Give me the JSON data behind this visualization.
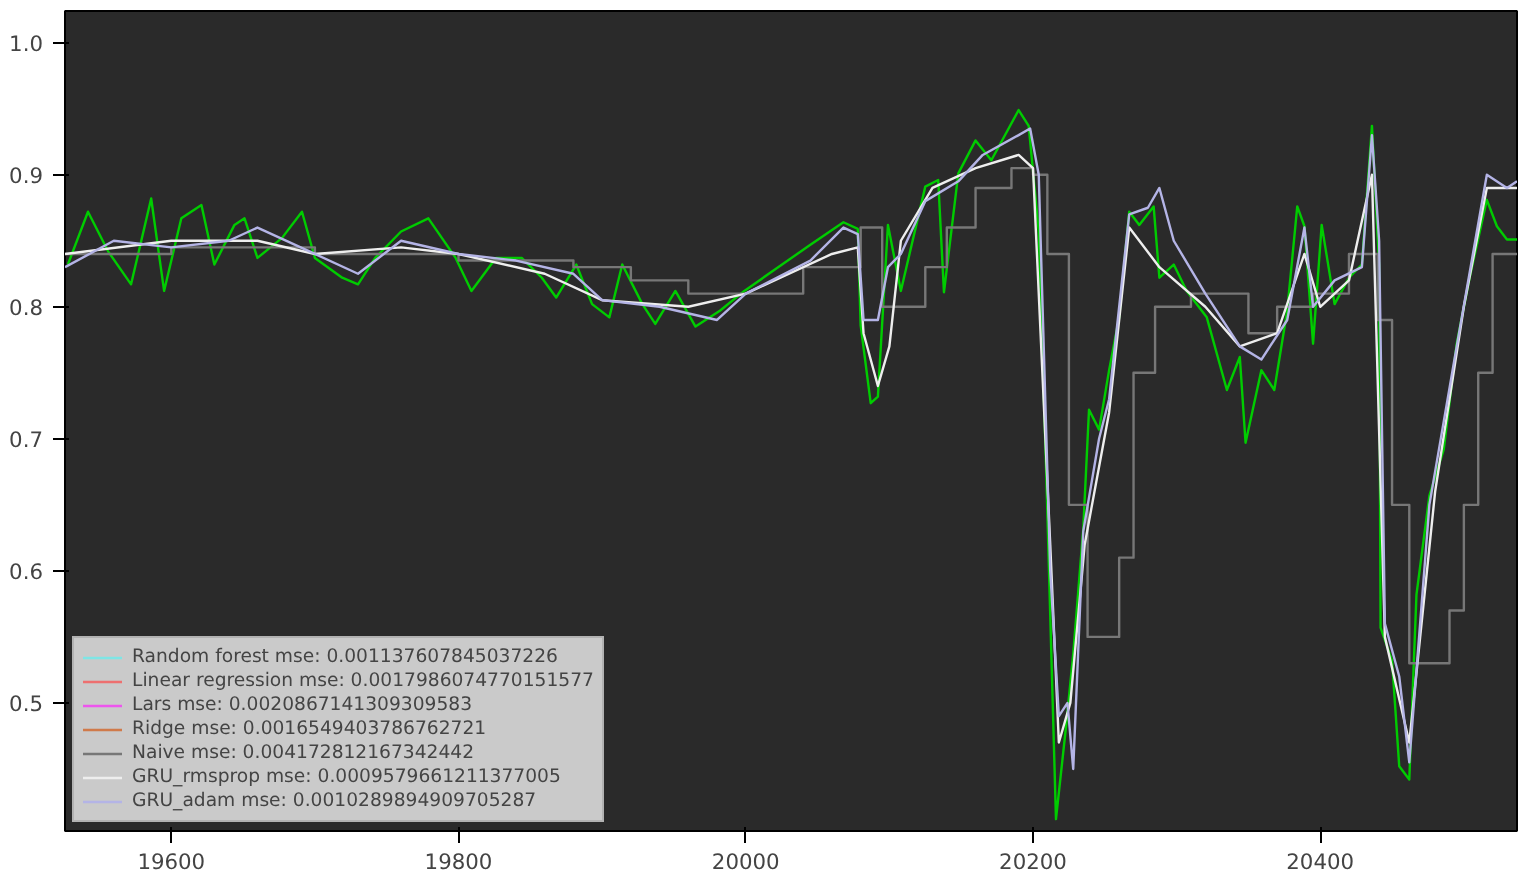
{
  "chart_data": {
    "type": "line",
    "xlim": [
      19526,
      20537
    ],
    "ylim": [
      0.403,
      1.024
    ],
    "xticks": [
      19600,
      19800,
      20000,
      20200,
      20400
    ],
    "yticks": [
      {
        "value": 0.5,
        "label": "0.5"
      },
      {
        "value": 0.6,
        "label": "0.6"
      },
      {
        "value": 0.7,
        "label": "0.7"
      },
      {
        "value": 0.8,
        "label": "0.8"
      },
      {
        "value": 0.9,
        "label": "0.9"
      },
      {
        "value": 1.0,
        "label": "1.0"
      }
    ],
    "grid": false,
    "legend": "bottom left",
    "series": [
      {
        "color": "#00cc00",
        "x": [
          19528,
          19542,
          19556,
          19572,
          19586,
          19595,
          19607,
          19621,
          19630,
          19644,
          19651,
          19660,
          19677,
          19691,
          19700,
          19719,
          19730,
          19742,
          19760,
          19779,
          19798,
          19809,
          19826,
          19844,
          19858,
          19868,
          19882,
          19893,
          19905,
          19914,
          19928,
          19937,
          19951,
          19965,
          19982,
          19999,
          20045,
          20068,
          20078,
          20080,
          20087,
          20092,
          20099,
          20108,
          20125,
          20134,
          20138,
          20148,
          20160,
          20171,
          20190,
          20197,
          20204,
          20209,
          20216,
          20223,
          20228,
          20235,
          20239,
          20246,
          20253,
          20260,
          20267,
          20274,
          20284,
          20288,
          20298,
          20307,
          20321,
          20335,
          20344,
          20348,
          20359,
          20368,
          20377,
          20384,
          20389,
          20395,
          20401,
          20410,
          20420,
          20429,
          20436,
          20441,
          20442,
          20450,
          20455,
          20462,
          20467,
          20476,
          20486,
          20495,
          20504,
          20516,
          20523,
          20530,
          20537
        ],
        "values": [
          0.832,
          0.872,
          0.842,
          0.817,
          0.882,
          0.812,
          0.867,
          0.877,
          0.832,
          0.862,
          0.867,
          0.837,
          0.852,
          0.872,
          0.837,
          0.822,
          0.817,
          0.837,
          0.857,
          0.867,
          0.837,
          0.812,
          0.837,
          0.837,
          0.822,
          0.807,
          0.832,
          0.802,
          0.792,
          0.832,
          0.802,
          0.787,
          0.812,
          0.785,
          0.797,
          0.812,
          0.847,
          0.864,
          0.859,
          0.786,
          0.727,
          0.732,
          0.862,
          0.812,
          0.891,
          0.896,
          0.811,
          0.901,
          0.926,
          0.911,
          0.949,
          0.937,
          0.857,
          0.682,
          0.412,
          0.482,
          0.537,
          0.632,
          0.722,
          0.707,
          0.752,
          0.792,
          0.872,
          0.862,
          0.876,
          0.822,
          0.832,
          0.812,
          0.792,
          0.737,
          0.762,
          0.697,
          0.752,
          0.737,
          0.797,
          0.876,
          0.861,
          0.772,
          0.862,
          0.802,
          0.822,
          0.832,
          0.937,
          0.832,
          0.557,
          0.532,
          0.452,
          0.442,
          0.582,
          0.657,
          0.692,
          0.772,
          0.822,
          0.881,
          0.861,
          0.851,
          0.851
        ]
      },
      {
        "name": "Random forest mse: 0.001137607845037226",
        "color": "#7fe5e5",
        "values": [
          null
        ]
      },
      {
        "name": "Linear regression mse: 0.0017986074770151577",
        "color": "#ee7070",
        "values": [
          null
        ]
      },
      {
        "name": "Lars mse: 0.0020867141309309583",
        "color": "#ee55ee",
        "values": [
          null
        ]
      },
      {
        "name": "Ridge mse: 0.0016549403786762721",
        "color": "#d07a4a",
        "values": [
          null
        ]
      },
      {
        "name": "Naive mse: 0.004172812167342442",
        "color": "#777777",
        "type": "step",
        "x": [
          19526,
          19600,
          19700,
          19800,
          19880,
          19920,
          19960,
          20000,
          20040,
          20080,
          20095,
          20110,
          20125,
          20140,
          20160,
          20185,
          20200,
          20210,
          20225,
          20238,
          20250,
          20260,
          20270,
          20285,
          20310,
          20350,
          20370,
          20395,
          20420,
          20440,
          20450,
          20462,
          20475,
          20490,
          20500,
          20510,
          20520,
          20537
        ],
        "values": [
          0.84,
          0.845,
          0.84,
          0.835,
          0.83,
          0.82,
          0.81,
          0.81,
          0.83,
          0.86,
          0.8,
          0.8,
          0.83,
          0.86,
          0.89,
          0.905,
          0.9,
          0.84,
          0.65,
          0.55,
          0.55,
          0.61,
          0.75,
          0.8,
          0.81,
          0.78,
          0.8,
          0.81,
          0.84,
          0.79,
          0.65,
          0.53,
          0.53,
          0.57,
          0.65,
          0.75,
          0.84,
          0.84
        ]
      },
      {
        "name": "GRU_rmsprop mse: 0.0009579661211377005",
        "color": "#eeeeee",
        "x": [
          19526,
          19600,
          19660,
          19700,
          19760,
          19800,
          19860,
          19900,
          19960,
          20000,
          20060,
          20078,
          20082,
          20092,
          20100,
          20108,
          20130,
          20160,
          20190,
          20200,
          20212,
          20218,
          20226,
          20236,
          20253,
          20267,
          20288,
          20320,
          20344,
          20370,
          20389,
          20400,
          20420,
          20436,
          20445,
          20462,
          20480,
          20500,
          20516,
          20537
        ],
        "values": [
          0.84,
          0.85,
          0.85,
          0.84,
          0.845,
          0.84,
          0.825,
          0.805,
          0.8,
          0.81,
          0.84,
          0.845,
          0.78,
          0.74,
          0.77,
          0.85,
          0.89,
          0.905,
          0.915,
          0.905,
          0.62,
          0.47,
          0.5,
          0.62,
          0.72,
          0.86,
          0.83,
          0.8,
          0.77,
          0.78,
          0.84,
          0.8,
          0.82,
          0.9,
          0.55,
          0.47,
          0.66,
          0.8,
          0.89,
          0.89
        ]
      },
      {
        "name": "GRU_adam mse: 0.0010289894909705287",
        "color": "#b4b4e6",
        "x": [
          19526,
          19560,
          19600,
          19640,
          19660,
          19700,
          19730,
          19760,
          19800,
          19840,
          19880,
          19900,
          19940,
          19980,
          20000,
          20045,
          20068,
          20078,
          20082,
          20092,
          20099,
          20108,
          20125,
          20148,
          20165,
          20190,
          20198,
          20204,
          20212,
          20218,
          20224,
          20228,
          20235,
          20246,
          20253,
          20267,
          20280,
          20288,
          20298,
          20320,
          20344,
          20359,
          20377,
          20389,
          20395,
          20410,
          20429,
          20436,
          20441,
          20445,
          20455,
          20462,
          20476,
          20495,
          20516,
          20530,
          20537
        ],
        "values": [
          0.83,
          0.85,
          0.845,
          0.85,
          0.86,
          0.84,
          0.825,
          0.85,
          0.84,
          0.835,
          0.825,
          0.805,
          0.8,
          0.79,
          0.81,
          0.835,
          0.86,
          0.855,
          0.79,
          0.79,
          0.83,
          0.84,
          0.88,
          0.895,
          0.915,
          0.93,
          0.935,
          0.9,
          0.6,
          0.49,
          0.5,
          0.45,
          0.63,
          0.7,
          0.73,
          0.87,
          0.875,
          0.89,
          0.85,
          0.81,
          0.77,
          0.76,
          0.79,
          0.86,
          0.8,
          0.82,
          0.83,
          0.93,
          0.85,
          0.56,
          0.52,
          0.455,
          0.65,
          0.77,
          0.9,
          0.89,
          0.895
        ]
      }
    ]
  }
}
